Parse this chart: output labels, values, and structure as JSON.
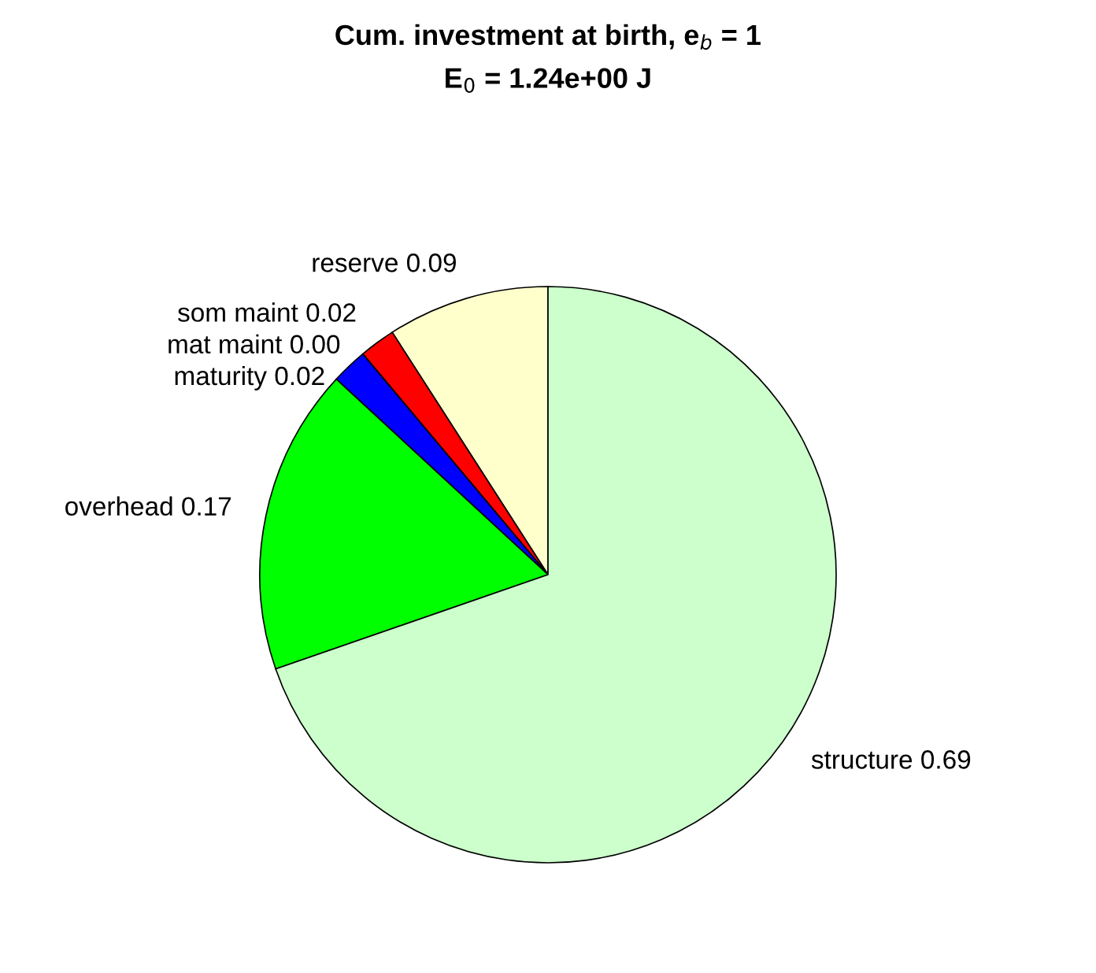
{
  "chart_data": {
    "type": "pie",
    "title": "Cum. investment at birth, e$_{b}$ = 1\nE$_{0}$ = 1.24e+00 J",
    "categories": [
      "reserve 0.09",
      "som maint 0.02",
      "mat maint 0.00",
      "maturity 0.02",
      "overhead 0.17",
      "structure 0.69"
    ],
    "values": [
      0.09,
      0.02,
      0.0,
      0.02,
      0.17,
      0.69
    ],
    "colors": [
      "#ffffcc",
      "#ff0000",
      "#808080",
      "#0000ff",
      "#00ff00",
      "#ccffcc"
    ]
  }
}
